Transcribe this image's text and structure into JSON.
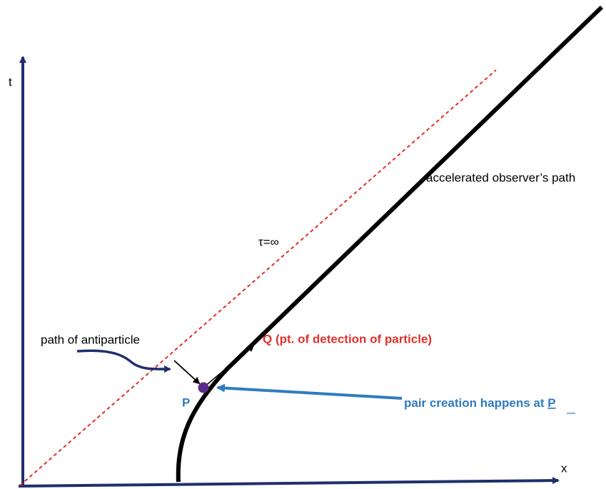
{
  "axes": {
    "t": "t",
    "x": "x"
  },
  "labels": {
    "observer_path": "accelerated observer’s path",
    "tau": "τ=∞",
    "antiparticle": "path of antiparticle",
    "q": "Q (pt. of detection of particle)",
    "p": "P",
    "pair_creation": "pair creation happens at",
    "pair_creation_point": "P"
  }
}
